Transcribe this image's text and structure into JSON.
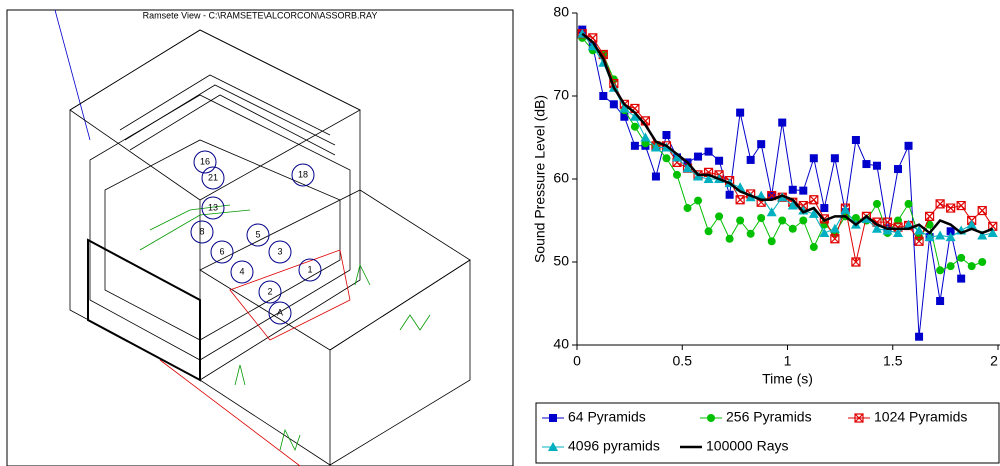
{
  "viewer": {
    "title": "Ramsete View - C:\\RAMSETE\\ALCORCON\\ASSORB.RAY",
    "source_labels": [
      "1",
      "2",
      "3",
      "4",
      "5",
      "6",
      "8",
      "13",
      "16",
      "18",
      "21",
      "A"
    ]
  },
  "chart_data": {
    "type": "line",
    "xlabel": "Time (s)",
    "ylabel": "Sound Pressure Level (dB)",
    "xlim": [
      0,
      2
    ],
    "xticks": [
      0,
      0.5,
      1,
      1.5,
      2
    ],
    "ylim": [
      40,
      80
    ],
    "yticks": [
      40,
      50,
      60,
      70,
      80
    ],
    "legend": "bottom",
    "x": [
      0.025,
      0.075,
      0.125,
      0.175,
      0.225,
      0.275,
      0.325,
      0.375,
      0.425,
      0.475,
      0.525,
      0.575,
      0.625,
      0.675,
      0.725,
      0.775,
      0.825,
      0.875,
      0.925,
      0.975,
      1.025,
      1.075,
      1.125,
      1.175,
      1.225,
      1.275,
      1.325,
      1.375,
      1.425,
      1.475,
      1.525,
      1.575,
      1.625,
      1.675,
      1.725,
      1.775,
      1.825,
      1.875,
      1.925,
      1.975
    ],
    "series": [
      {
        "name": "64 Pyramids",
        "color": "#0000cc",
        "marker": "square",
        "values": [
          78,
          76,
          70,
          69,
          67.5,
          64,
          64,
          60.3,
          65.3,
          62.6,
          62,
          62.7,
          63.3,
          62.2,
          58.1,
          68,
          62.3,
          64.2,
          58,
          66.8,
          58.7,
          58.6,
          62.5,
          56.5,
          62.5,
          56,
          64.7,
          61.8,
          61.6,
          54,
          61.2,
          64,
          41,
          53,
          45.3,
          53.7,
          48,
          null,
          null,
          null
        ]
      },
      {
        "name": "256 Pyramids",
        "color": "#00c000",
        "marker": "circle",
        "values": [
          77,
          75.5,
          75,
          72,
          68.3,
          66.3,
          64.3,
          64,
          62.5,
          60.5,
          56.5,
          57.4,
          53.7,
          55.5,
          52.8,
          55,
          53.4,
          55.3,
          52.5,
          55,
          54,
          55,
          51.8,
          54.5,
          53.5,
          55.5,
          55.3,
          55,
          57,
          53.5,
          55,
          57,
          53,
          54.5,
          49,
          49.5,
          50.5,
          49.5,
          50,
          null
        ]
      },
      {
        "name": "1024 Pyramids",
        "color": "#e00000",
        "marker": "xsquare",
        "values": [
          77.5,
          77,
          75,
          71.5,
          69,
          68.5,
          67,
          64,
          64,
          62,
          61.3,
          60.5,
          60.8,
          60.5,
          59.8,
          57.5,
          58.2,
          57.2,
          58,
          57.8,
          57.2,
          56.8,
          57.5,
          55.2,
          52.8,
          56.5,
          50,
          55.5,
          54.8,
          54.8,
          54.2,
          54.4,
          52.5,
          55.5,
          57,
          56.5,
          56.8,
          55,
          56.2,
          54.3
        ]
      },
      {
        "name": "4096 pyramids",
        "color": "#00b0c0",
        "marker": "triangle",
        "values": [
          77.5,
          76,
          74,
          71,
          68.5,
          67.5,
          65,
          63.8,
          63.8,
          62.6,
          61.3,
          60.3,
          60,
          60,
          59.5,
          59,
          57.8,
          58,
          56,
          57.8,
          56.8,
          56.2,
          55.8,
          53.5,
          54,
          56.3,
          54.5,
          55.2,
          54,
          53.8,
          53.5,
          54.5,
          53.8,
          53,
          53.2,
          53,
          53.8,
          54.5,
          53.2,
          53.5
        ]
      },
      {
        "name": "100000 Rays",
        "color": "#000000",
        "marker": "none",
        "values": [
          77.5,
          76.5,
          74.5,
          71,
          69,
          68,
          66.5,
          64.5,
          64,
          63,
          62,
          60.5,
          60.5,
          60,
          59.5,
          58.5,
          58,
          57.5,
          57.5,
          58,
          57.5,
          56,
          56.5,
          55,
          55.5,
          55.5,
          54.5,
          55.5,
          54.5,
          54,
          54,
          54,
          54.5,
          53.5,
          55,
          54.5,
          53.5,
          54,
          53.5,
          54
        ]
      }
    ]
  }
}
